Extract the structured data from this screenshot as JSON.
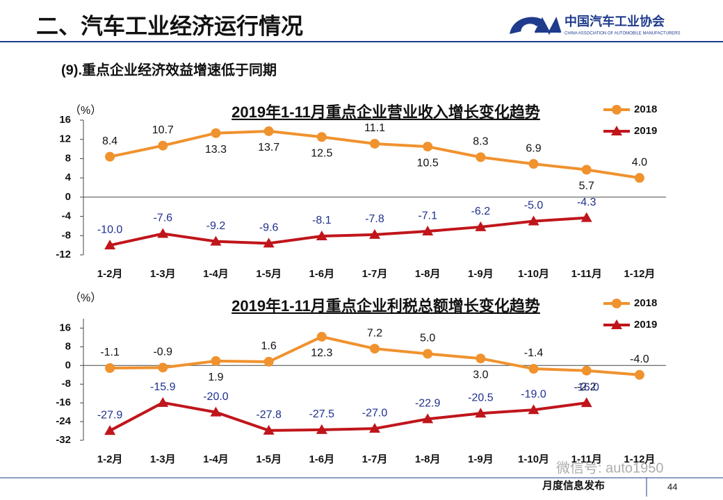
{
  "header": {
    "title": "二、汽车工业经济运行情况",
    "logo_cn": "中国汽车工业协会",
    "logo_en": "CHINA ASSOCIATION OF AUTOMOBILE MANUFACTURERS"
  },
  "subtitle": "(9).重点企业经济效益增速低于同期",
  "footer": {
    "text": "月度信息发布",
    "page": "44",
    "watermark": "微信号: auto1950"
  },
  "chart_data": [
    {
      "type": "line",
      "title": "2019年1-11月重点企业营业收入增长变化趋势",
      "y_label": "（%）",
      "categories": [
        "1-2月",
        "1-3月",
        "1-4月",
        "1-5月",
        "1-6月",
        "1-7月",
        "1-8月",
        "1-9月",
        "1-10月",
        "1-11月",
        "1-12月"
      ],
      "series": [
        {
          "name": "2018",
          "color": "#f0922e",
          "values": [
            8.4,
            10.7,
            13.3,
            13.7,
            12.5,
            11.1,
            10.5,
            8.3,
            6.9,
            5.7,
            4.0
          ],
          "value_labels": [
            "8.4",
            "10.7",
            "13.3",
            "13.7",
            "12.5",
            "11.1",
            "10.5",
            "8.3",
            "6.9",
            "5.7",
            "4.0"
          ]
        },
        {
          "name": "2019",
          "color": "#c0151b",
          "values": [
            -10.0,
            -7.6,
            -9.2,
            -9.6,
            -8.1,
            -7.8,
            -7.1,
            -6.2,
            -5.0,
            -4.3,
            null
          ],
          "value_labels": [
            "-10.0",
            "-7.6",
            "-9.2",
            "-9.6",
            "-8.1",
            "-7.8",
            "-7.1",
            "-6.2",
            "-5.0",
            "-4.3",
            null
          ]
        }
      ],
      "ylim": [
        -12,
        16
      ],
      "yticks": [
        -12,
        -8,
        -4,
        0,
        4,
        8,
        12,
        16
      ],
      "legend": "upper right"
    },
    {
      "type": "line",
      "title": "2019年1-11月重点企业利税总额增长变化趋势",
      "y_label": "（%）",
      "categories": [
        "1-2月",
        "1-3月",
        "1-4月",
        "1-5月",
        "1-6月",
        "1-7月",
        "1-8月",
        "1-9月",
        "1-10月",
        "1-11月",
        "1-12月"
      ],
      "series": [
        {
          "name": "2018",
          "color": "#f0922e",
          "values": [
            -1.1,
            -0.9,
            1.9,
            1.6,
            12.3,
            7.2,
            5.0,
            3.0,
            -1.4,
            -2.2,
            -4.0
          ],
          "value_labels": [
            "-1.1",
            "-0.9",
            "1.9",
            "1.6",
            "12.3",
            "7.2",
            "5.0",
            "3.0",
            "-1.4",
            "-2.2",
            "-4.0"
          ]
        },
        {
          "name": "2019",
          "color": "#c0151b",
          "values": [
            -27.9,
            -15.9,
            -20.0,
            -27.8,
            -27.5,
            -27.0,
            -22.9,
            -20.5,
            -19.0,
            -16.0,
            null
          ],
          "value_labels": [
            "-27.9",
            "-15.9",
            "-20.0",
            "-27.8",
            "-27.5",
            "-27.0",
            "-22.9",
            "-20.5",
            "-19.0",
            "-16.0",
            null
          ]
        }
      ],
      "ylim": [
        -32,
        20
      ],
      "yticks": [
        -32,
        -24,
        -16,
        -8,
        0,
        8,
        16
      ],
      "legend": "upper right"
    }
  ]
}
